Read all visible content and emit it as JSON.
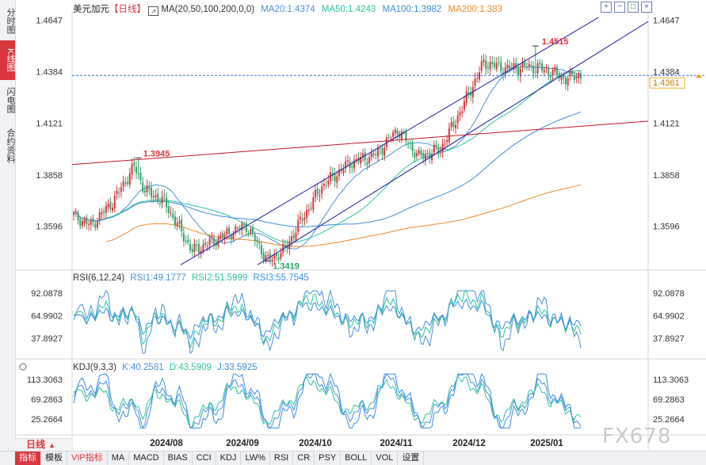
{
  "sidebar": {
    "tabs": [
      {
        "label": "分时图",
        "active": false
      },
      {
        "label": "K线图",
        "active": true
      },
      {
        "label": "闪电图",
        "active": false
      },
      {
        "label": "合约资料",
        "active": false
      }
    ]
  },
  "header": {
    "symbol": "美元加元",
    "period_tag": "【日线】",
    "ma_label": "MA(20,50,100,200,0,0)",
    "ma20": "MA20:1.4374",
    "ma50": "MA50:1.4243",
    "ma100": "MA100:1.3982",
    "ma200": "MA200:1.383"
  },
  "colors": {
    "up": "#d9363e",
    "down": "#2ea56b",
    "ma20": "#4a90d9",
    "ma50": "#2ec4a0",
    "ma100": "#3b8de0",
    "ma200": "#f08a2a",
    "channel": "#1f1fa8",
    "resistance": "#c0142a"
  },
  "chart_data": {
    "type": "candlestick",
    "price_axis": [
      "1.4647",
      "1.4384",
      "1.4121",
      "1.3858",
      "1.3596"
    ],
    "current_price": "1.4361",
    "annotations": [
      "1.4515",
      "1.3945",
      "1.3419"
    ],
    "x_axis": [
      "2024/08",
      "2024/09",
      "2024/10",
      "2024/11",
      "2024/12",
      "2025/01"
    ],
    "ylim": [
      1.3385,
      1.4693
    ],
    "rsi": {
      "label": "RSI(6,12,24)",
      "rsi1": "RSI1:49.1777",
      "rsi2": "RSI2:51.5999",
      "rsi3": "RSI3:55.7545",
      "axis": [
        "92.0878",
        "64.9902",
        "37.8927"
      ]
    },
    "kdj": {
      "label": "KDJ(9,3,3)",
      "k": "K:40.2581",
      "d": "D:43.5909",
      "j": "J:33.5925",
      "axis": [
        "113.3063",
        "69.2863",
        "25.2664"
      ]
    }
  },
  "period_button": "日线",
  "bottom_tabs": [
    "指标",
    "模板",
    "VIP指标",
    "MA",
    "MACD",
    "BIAS",
    "CCI",
    "KDJ",
    "LW%",
    "RSI",
    "CR",
    "PSY",
    "BOLL",
    "VOL",
    "设置"
  ],
  "toolbar_icons": [
    "zoom-in-icon",
    "zoom-out-icon",
    "fullscreen-icon",
    "close-icon"
  ],
  "watermark": "FX678"
}
